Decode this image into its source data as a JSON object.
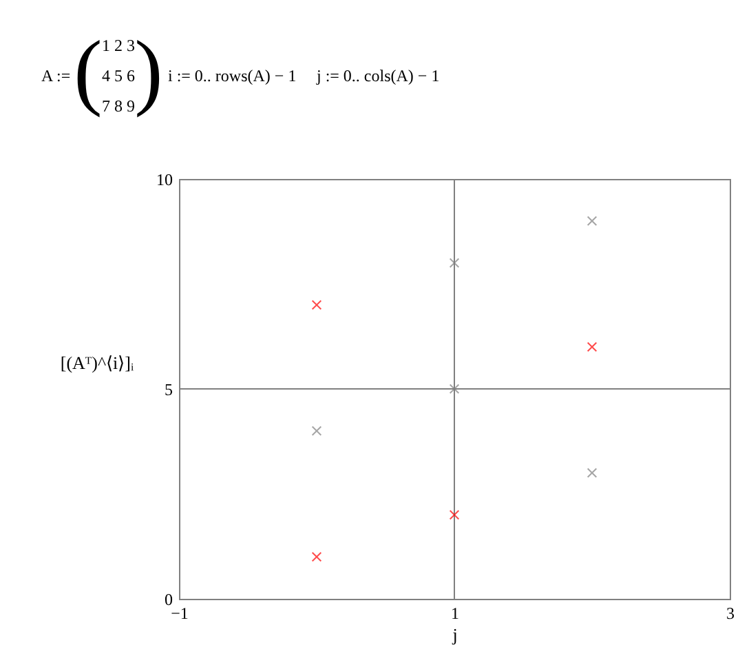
{
  "chart_data": {
    "type": "scatter",
    "annotations": [
      "A :=",
      "1  2  3",
      "4  5  6",
      "7  8  9",
      "i := 0.. rows(A) − 1",
      "j := 0.. cols(A) − 1",
      "(",
      ")"
    ],
    "xlabel": "j",
    "ylabel": "[(Aᵀ)^⟨i⟩]ᵢ",
    "series": [
      {
        "color": "#ff0000",
        "x": [
          0,
          0,
          1,
          2
        ],
        "values": [
          7,
          1,
          2,
          6
        ]
      },
      {
        "color": "#808080",
        "x": [
          0,
          1,
          1,
          2,
          2
        ],
        "values": [
          4,
          8,
          5,
          9,
          3
        ]
      }
    ],
    "xlim": [
      -1,
      3
    ],
    "xticks": [
      -1,
      1,
      3
    ],
    "ylim": [
      0,
      10
    ],
    "yticks": [
      0,
      5,
      10
    ],
    "ref_lines": [
      {
        "axis": "x",
        "value": 1,
        "color": "#808080"
      },
      {
        "axis": "y",
        "value": 5,
        "color": "#808080"
      }
    ],
    "marker": "cross",
    "grid": false
  }
}
